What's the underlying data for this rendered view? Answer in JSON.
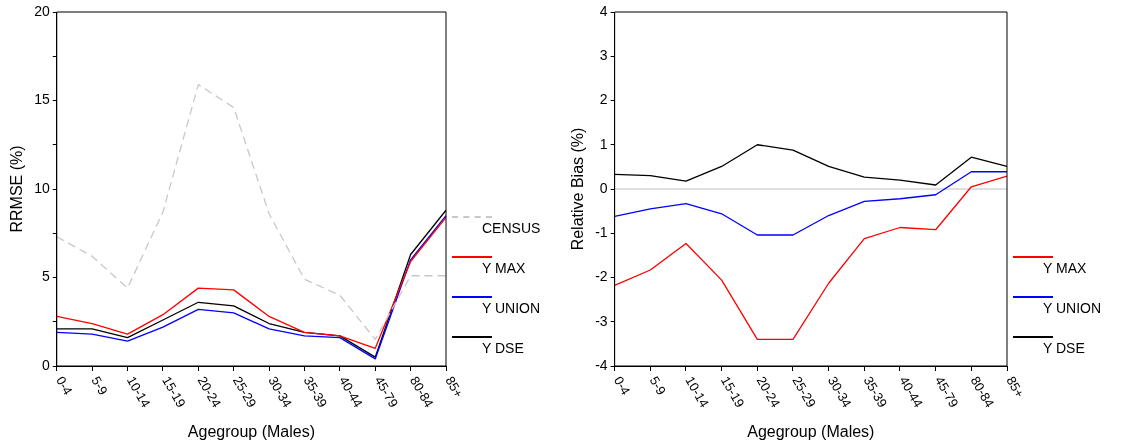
{
  "chart_data": [
    {
      "type": "line",
      "xlabel": "Agegroup (Males)",
      "ylabel": "RRMSE (%)",
      "categories": [
        "0-4",
        "5-9",
        "10-14",
        "15-19",
        "20-24",
        "25-29",
        "30-34",
        "35-39",
        "40-44",
        "45-79",
        "80-84",
        "85+"
      ],
      "series": [
        {
          "name": "CENSUS",
          "color": "#c8c8c8",
          "line_style": "dashed",
          "values": [
            7.3,
            6.2,
            4.4,
            8.7,
            15.9,
            14.6,
            8.6,
            4.9,
            4.0,
            1.5,
            5.1,
            5.1
          ]
        },
        {
          "name": "Y MAX",
          "color": "#ff0000",
          "values": [
            2.8,
            2.4,
            1.8,
            2.9,
            4.4,
            4.3,
            2.8,
            1.9,
            1.7,
            1.0,
            5.9,
            8.4
          ]
        },
        {
          "name": "Y UNION",
          "color": "#0000ff",
          "values": [
            1.9,
            1.8,
            1.4,
            2.2,
            3.2,
            3.0,
            2.1,
            1.7,
            1.6,
            0.4,
            6.0,
            8.5
          ]
        },
        {
          "name": "Y DSE",
          "color": "#000000",
          "values": [
            2.1,
            2.1,
            1.6,
            2.6,
            3.6,
            3.4,
            2.4,
            1.9,
            1.7,
            0.5,
            6.3,
            8.8
          ]
        }
      ],
      "ylim": [
        0,
        20
      ],
      "yticks": [
        0,
        {
          "value": 2.5,
          "label": null
        },
        5,
        {
          "value": 7.5,
          "label": null
        },
        10,
        {
          "value": 12.5,
          "label": null
        },
        15,
        {
          "value": 17.5,
          "label": null
        },
        20
      ],
      "grid": false,
      "legend": "right",
      "marker": "none",
      "line_style": "solid"
    },
    {
      "type": "line",
      "xlabel": "Agegroup (Males)",
      "ylabel": "Relative Bias (%)",
      "categories": [
        "0-4",
        "5-9",
        "10-14",
        "15-19",
        "20-24",
        "25-29",
        "30-34",
        "35-39",
        "40-44",
        "45-79",
        "80-84",
        "85+"
      ],
      "series": [
        {
          "name": "Y MAX",
          "color": "#ff0000",
          "values": [
            -2.18,
            -1.83,
            -1.23,
            -2.06,
            -3.4,
            -3.4,
            -2.13,
            -1.12,
            -0.87,
            -0.92,
            0.05,
            0.29
          ]
        },
        {
          "name": "Y UNION",
          "color": "#0000ff",
          "values": [
            -0.62,
            -0.45,
            -0.33,
            -0.56,
            -1.04,
            -1.04,
            -0.6,
            -0.28,
            -0.22,
            -0.13,
            0.39,
            0.39
          ]
        },
        {
          "name": "Y DSE",
          "color": "#000000",
          "values": [
            0.33,
            0.3,
            0.18,
            0.51,
            1.0,
            0.88,
            0.51,
            0.27,
            0.2,
            0.09,
            0.72,
            0.51
          ]
        }
      ],
      "ylim": [
        -4,
        4
      ],
      "yticks": [
        -4,
        -3,
        -2,
        -1,
        0,
        1,
        2,
        3,
        4
      ],
      "ref_lines": [
        {
          "axis": "y",
          "value": 0,
          "color": "#c0c0c0"
        }
      ],
      "grid": false,
      "legend": "right",
      "marker": "none",
      "line_style": "solid"
    }
  ]
}
